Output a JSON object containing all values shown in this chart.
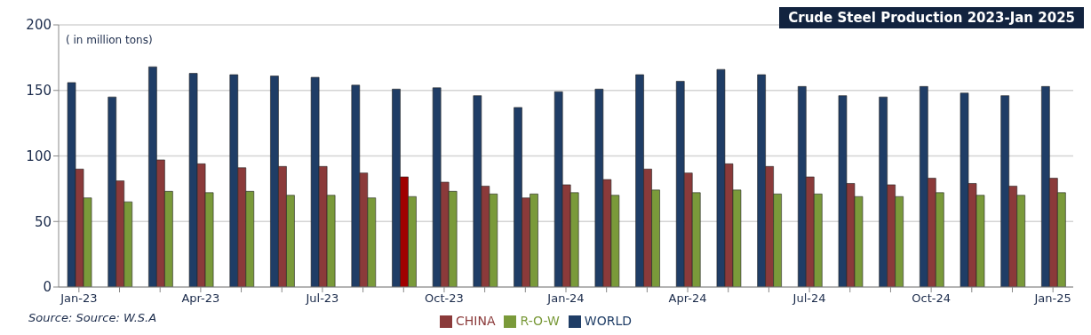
{
  "chart_data": {
    "type": "bar",
    "title": "Crude Steel Production 2023-Jan 2025",
    "annotations": [
      "( in million  tons)",
      "Source:  Source: W.S.A"
    ],
    "categories": [
      "Jan-23",
      null,
      null,
      "Apr-23",
      null,
      null,
      "Jul-23",
      null,
      null,
      "Oct-23",
      null,
      null,
      "Jan-24",
      null,
      null,
      "Apr-24",
      null,
      null,
      "Jul-24",
      null,
      null,
      "Oct-24",
      null,
      null,
      "Jan-25"
    ],
    "series": [
      {
        "name": "WORLD",
        "color": "#1f3d66",
        "values": [
          156,
          145,
          168,
          163,
          162,
          161,
          160,
          154,
          151,
          152,
          146,
          137,
          149,
          151,
          162,
          157,
          166,
          162,
          153,
          146,
          145,
          153,
          148,
          146,
          153
        ]
      },
      {
        "name": "CHINA",
        "color": "#8b3a3a",
        "colors": [
          "#8b3a3a",
          "#8b3a3a",
          "#8b3a3a",
          "#8b3a3a",
          "#8b3a3a",
          "#8b3a3a",
          "#8b3a3a",
          "#8b3a3a",
          "#a00000",
          "#8b3a3a",
          "#8b3a3a",
          "#8b3a3a",
          "#8b3a3a",
          "#8b3a3a",
          "#8b3a3a",
          "#8b3a3a",
          "#8b3a3a",
          "#8b3a3a",
          "#8b3a3a",
          "#8b3a3a",
          "#8b3a3a",
          "#8b3a3a",
          "#8b3a3a",
          "#8b3a3a",
          "#8b3a3a"
        ],
        "values": [
          90,
          81,
          97,
          94,
          91,
          92,
          92,
          87,
          84,
          80,
          77,
          68,
          78,
          82,
          90,
          87,
          94,
          92,
          84,
          79,
          78,
          83,
          79,
          77,
          83
        ]
      },
      {
        "name": "R-O-W",
        "color": "#7a9a3a",
        "values": [
          68,
          65,
          73,
          72,
          73,
          70,
          70,
          68,
          69,
          73,
          71,
          71,
          72,
          70,
          74,
          72,
          74,
          71,
          71,
          69,
          69,
          72,
          70,
          70,
          72
        ]
      }
    ],
    "ylim": [
      0,
      200
    ],
    "yticks": [
      0,
      50,
      100,
      150,
      200
    ],
    "grid": "y",
    "legend": "bottom"
  }
}
